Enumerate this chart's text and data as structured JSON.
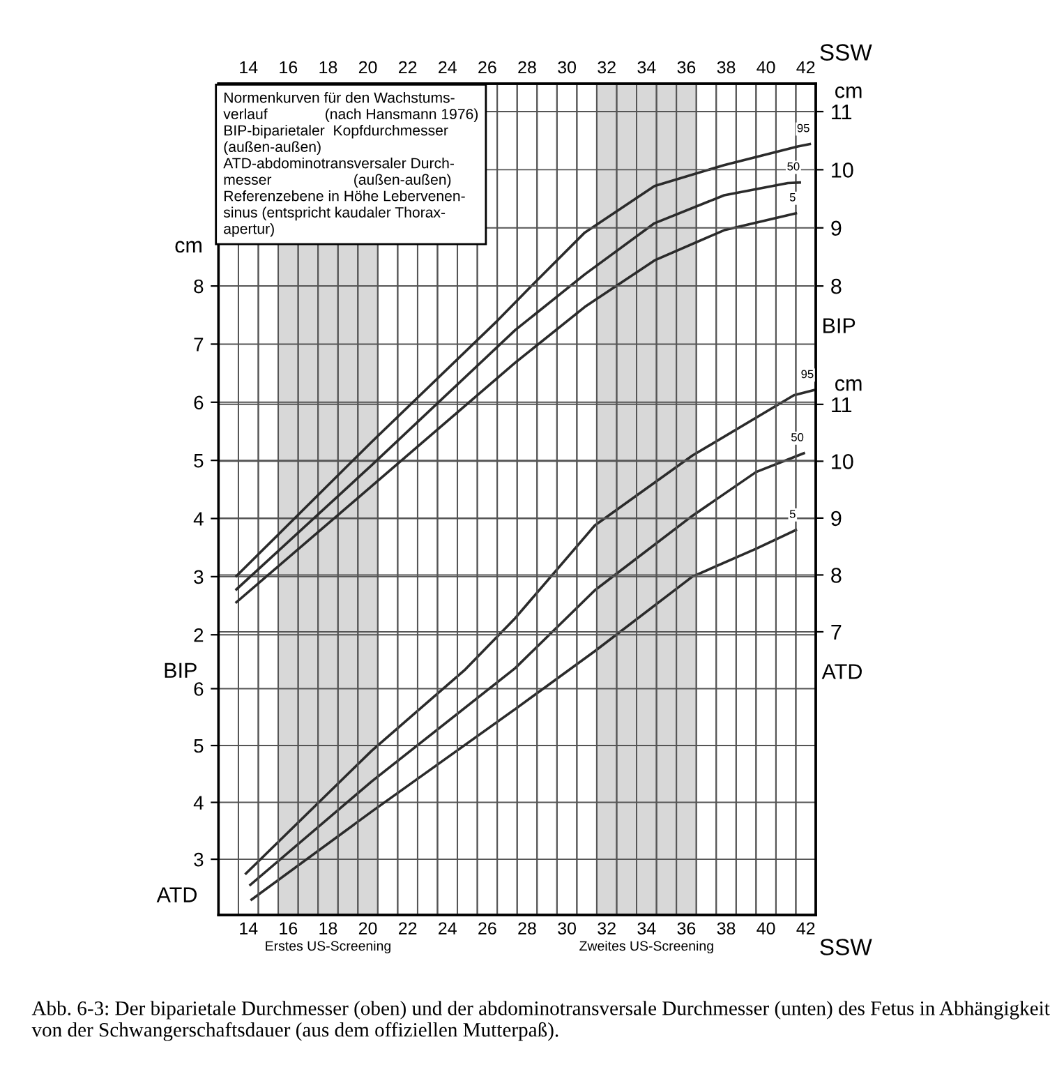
{
  "chart_data": [
    {
      "type": "line",
      "xlim": [
        12.5,
        42.5
      ],
      "x2lim": [
        12.5,
        42.5
      ],
      "x2label": "SSW",
      "x2ticks": [
        14,
        16,
        18,
        20,
        22,
        24,
        26,
        28,
        30,
        32,
        34,
        36,
        38,
        40,
        42,
        {
          "value": 13.5,
          "label": null
        },
        {
          "value": 14.5,
          "label": null
        },
        {
          "value": 15.5,
          "label": null
        },
        {
          "value": 16.5,
          "label": null
        },
        {
          "value": 17.5,
          "label": null
        },
        {
          "value": 18.5,
          "label": null
        },
        {
          "value": 19.5,
          "label": null
        },
        {
          "value": 20.5,
          "label": null
        },
        {
          "value": 21.5,
          "label": null
        },
        {
          "value": 22.5,
          "label": null
        },
        {
          "value": 23.5,
          "label": null
        },
        {
          "value": 24.5,
          "label": null
        },
        {
          "value": 25.5,
          "label": null
        },
        {
          "value": 26.5,
          "label": null
        },
        {
          "value": 27.5,
          "label": null
        },
        {
          "value": 28.5,
          "label": null
        },
        {
          "value": 29.5,
          "label": null
        },
        {
          "value": 30.5,
          "label": null
        },
        {
          "value": 31.5,
          "label": null
        },
        {
          "value": 32.5,
          "label": null
        },
        {
          "value": 33.5,
          "label": null
        },
        {
          "value": 34.5,
          "label": null
        },
        {
          "value": 35.5,
          "label": null
        },
        {
          "value": 36.5,
          "label": null
        },
        {
          "value": 37.5,
          "label": null
        },
        {
          "value": 38.5,
          "label": null
        },
        {
          "value": 39.5,
          "label": null
        },
        {
          "value": 40.5,
          "label": null
        },
        {
          "value": 41.5,
          "label": null
        }
      ],
      "ylim": [
        -2.82,
        11.48
      ],
      "yticks": [
        2,
        3,
        4,
        5,
        6,
        7,
        8
      ],
      "ylabel": "cm",
      "y2lim": [
        -2.82,
        11.48
      ],
      "y2ticks": [
        8,
        9,
        10,
        11
      ],
      "y2label": "cm",
      "grid": true,
      "legend": false,
      "marker": "none",
      "line_style": "solid",
      "annotations": [
        "BIP",
        "BIP",
        "Normenkurven für den Wachstums-\nverlauf              (nach Hansmann 1976)\nBIP-biparietaler  Kopfdurchmesser\n(außen-außen)\nATD-abdominotransversaler Durch-\nmesser                    (außen-außen)\nReferenzebene in Höhe Lebervenen-\nsinus (entspricht kaudaler Thorax-\napertur)"
      ],
      "series": [
        {
          "name": "95",
          "color": "#2b2b2b",
          "x": [
            13.4,
            20.2,
            26.5,
            28.1,
            30.9,
            34.4,
            37.9,
            41.6,
            42.2
          ],
          "values": [
            3.01,
            5.32,
            7.4,
            7.96,
            8.92,
            9.72,
            10.08,
            10.4,
            10.44
          ]
        },
        {
          "name": "50",
          "color": "#2b2b2b",
          "x": [
            13.4,
            20.2,
            27.4,
            30.9,
            34.4,
            37.9,
            41.1,
            41.7
          ],
          "values": [
            2.78,
            4.92,
            7.24,
            8.2,
            9.08,
            9.56,
            9.77,
            9.78
          ]
        },
        {
          "name": "5",
          "color": "#2b2b2b",
          "x": [
            13.4,
            20.2,
            27.4,
            30.9,
            34.4,
            37.9,
            41.5
          ],
          "values": [
            2.56,
            4.56,
            6.68,
            7.64,
            8.44,
            8.96,
            9.25
          ]
        }
      ]
    },
    {
      "type": "line",
      "xlim": [
        12.5,
        42.5
      ],
      "xlabel": "SSW",
      "xticks": [
        14,
        16,
        18,
        20,
        22,
        24,
        26,
        28,
        30,
        32,
        34,
        36,
        38,
        40,
        42,
        {
          "value": 13.5,
          "label": null
        },
        {
          "value": 14.5,
          "label": null
        },
        {
          "value": 15.5,
          "label": null
        },
        {
          "value": 16.5,
          "label": null
        },
        {
          "value": 17.5,
          "label": null
        },
        {
          "value": 18.5,
          "label": null
        },
        {
          "value": 19.5,
          "label": null
        },
        {
          "value": 20.5,
          "label": null
        },
        {
          "value": 21.5,
          "label": null
        },
        {
          "value": 22.5,
          "label": null
        },
        {
          "value": 23.5,
          "label": null
        },
        {
          "value": 24.5,
          "label": null
        },
        {
          "value": 25.5,
          "label": null
        },
        {
          "value": 26.5,
          "label": null
        },
        {
          "value": 27.5,
          "label": null
        },
        {
          "value": 28.5,
          "label": null
        },
        {
          "value": 29.5,
          "label": null
        },
        {
          "value": 30.5,
          "label": null
        },
        {
          "value": 31.5,
          "label": null
        },
        {
          "value": 32.5,
          "label": null
        },
        {
          "value": 33.5,
          "label": null
        },
        {
          "value": 34.5,
          "label": null
        },
        {
          "value": 35.5,
          "label": null
        },
        {
          "value": 36.5,
          "label": null
        },
        {
          "value": 37.5,
          "label": null
        },
        {
          "value": 38.5,
          "label": null
        },
        {
          "value": 39.5,
          "label": null
        },
        {
          "value": 40.5,
          "label": null
        },
        {
          "value": 41.5,
          "label": null
        }
      ],
      "ylim": [
        2.02,
        16.64
      ],
      "yticks": [
        3,
        4,
        5,
        6
      ],
      "y2lim": [
        2.02,
        16.64
      ],
      "y2ticks": [
        7,
        8,
        9,
        10,
        11
      ],
      "y2label": "cm",
      "grid": true,
      "legend": false,
      "marker": "none",
      "line_style": "solid",
      "bands": [
        {
          "axis": "x",
          "from": 15.5,
          "to": 20.5,
          "label": "Erstes US-Screening",
          "color": "#b8b8b8"
        },
        {
          "axis": "x",
          "from": 31.5,
          "to": 36.5,
          "label": "Zweites US-Screening",
          "color": "#b8b8b8"
        }
      ],
      "annotations": [
        "ATD",
        "ATD",
        "Abb. 6-3: Der biparietale Durchmesser (oben) und der abdominotransversale Durchmesser (unten) des Fetus in Abhängigkeit von der Schwangerschaftsdauer (aus dem offiziellen Mutterpaß)."
      ],
      "series": [
        {
          "name": "95",
          "color": "#2b2b2b",
          "x": [
            13.88,
            20.2,
            24.9,
            27.4,
            31.4,
            36.3,
            41.4,
            42.4
          ],
          "values": [
            2.75,
            4.91,
            6.34,
            7.24,
            8.87,
            10.1,
            11.16,
            11.25
          ]
        },
        {
          "name": "50",
          "color": "#2b2b2b",
          "x": [
            14.1,
            20.2,
            27.4,
            31.4,
            36.3,
            39.5,
            41.9
          ],
          "values": [
            2.55,
            4.37,
            6.36,
            7.73,
            9.04,
            9.81,
            10.14
          ]
        },
        {
          "name": "5",
          "color": "#2b2b2b",
          "x": [
            14.16,
            20.2,
            27.4,
            31.4,
            36.3,
            39.5,
            41.5
          ],
          "values": [
            2.29,
            3.84,
            5.64,
            6.66,
            7.97,
            8.46,
            8.79
          ]
        }
      ]
    }
  ]
}
